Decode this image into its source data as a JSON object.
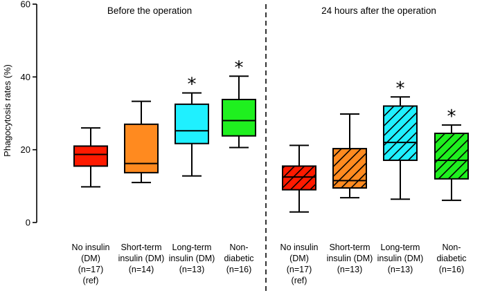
{
  "chart_data": {
    "type": "box",
    "ylabel": "Phagocytosis rates (%)",
    "ylim": [
      0,
      60
    ],
    "yticks": [
      0,
      20,
      40,
      60
    ],
    "grid": false,
    "panels": [
      {
        "title": "Before the operation",
        "groups": [
          {
            "label_lines": [
              "No insulin",
              "(DM)",
              "(n=17)",
              "(ref)"
            ],
            "min": 9.8,
            "q1": 15.5,
            "median": 18.7,
            "q3": 21.0,
            "max": 26.0,
            "color": "#ff1a00",
            "hatched": false,
            "significant": false
          },
          {
            "label_lines": [
              "Short-term",
              "insulin (DM)",
              "(n=14)"
            ],
            "min": 11.0,
            "q1": 13.7,
            "median": 16.2,
            "q3": 27.0,
            "max": 33.3,
            "color": "#ff8a1f",
            "hatched": false,
            "significant": false
          },
          {
            "label_lines": [
              "Long-term",
              "insulin (DM)",
              "(n=13)"
            ],
            "min": 12.8,
            "q1": 21.7,
            "median": 25.2,
            "q3": 32.5,
            "max": 35.6,
            "color": "#1ff0ff",
            "hatched": false,
            "significant": true
          },
          {
            "label_lines": [
              "Non-",
              "diabetic",
              "(n=16)"
            ],
            "min": 20.6,
            "q1": 23.8,
            "median": 28.0,
            "q3": 33.8,
            "max": 40.2,
            "color": "#1ff01f",
            "hatched": false,
            "significant": true
          }
        ]
      },
      {
        "title": "24 hours after the operation",
        "groups": [
          {
            "label_lines": [
              "No insulin",
              "(DM)",
              "(n=17)",
              "(ref)"
            ],
            "min": 2.9,
            "q1": 9.0,
            "median": 12.5,
            "q3": 15.5,
            "max": 21.2,
            "color": "#ff1a00",
            "hatched": true,
            "significant": false
          },
          {
            "label_lines": [
              "Short-term",
              "insulin (DM)",
              "(n=13)"
            ],
            "min": 6.8,
            "q1": 9.5,
            "median": 11.5,
            "q3": 20.3,
            "max": 29.8,
            "color": "#ff8a1f",
            "hatched": true,
            "significant": false
          },
          {
            "label_lines": [
              "Long-term",
              "insulin (DM)",
              "(n=13)"
            ],
            "min": 6.4,
            "q1": 17.1,
            "median": 22.0,
            "q3": 32.0,
            "max": 34.5,
            "color": "#1ff0ff",
            "hatched": true,
            "significant": true
          },
          {
            "label_lines": [
              "Non-",
              "diabetic",
              "(n=16)"
            ],
            "min": 6.1,
            "q1": 12.0,
            "median": 17.1,
            "q3": 24.5,
            "max": 26.8,
            "color": "#1ff01f",
            "hatched": true,
            "significant": true
          }
        ]
      }
    ],
    "significance_marker": "*"
  }
}
